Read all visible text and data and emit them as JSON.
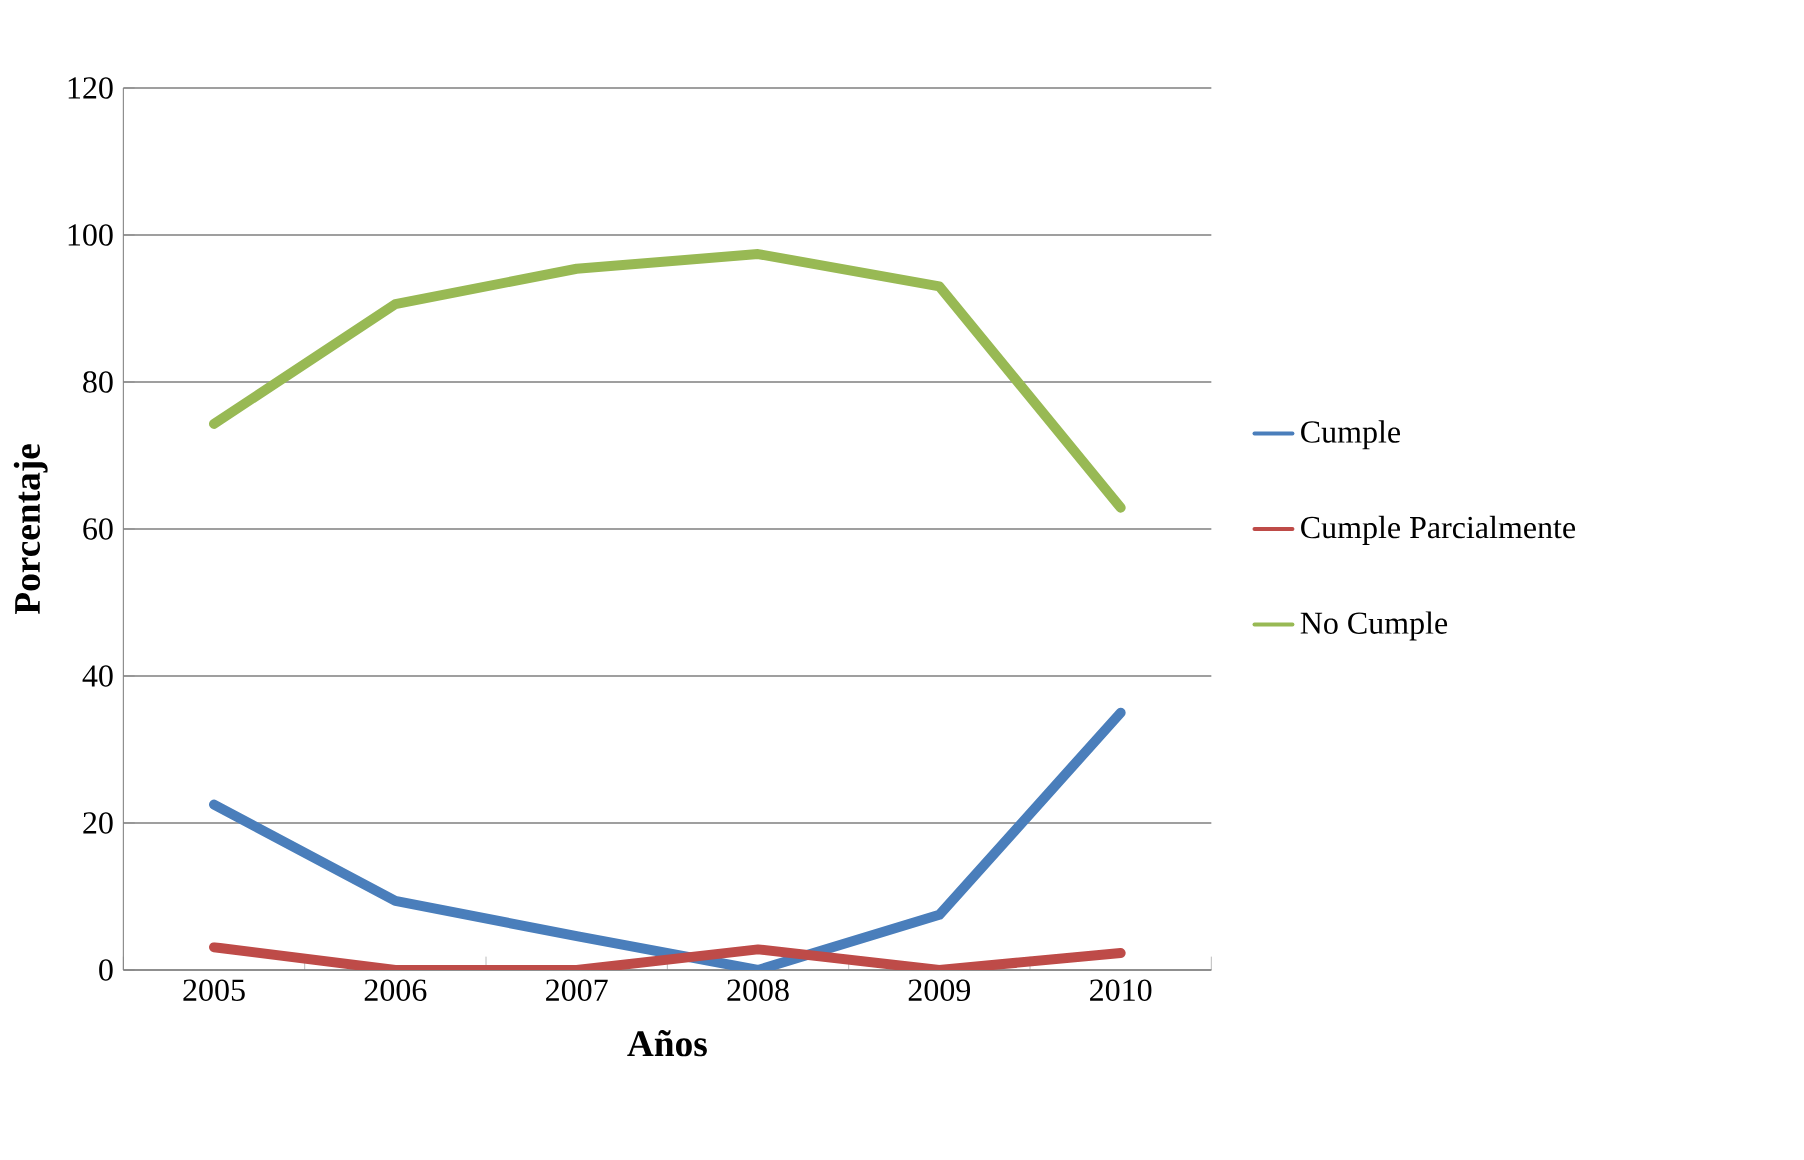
{
  "chart_data": {
    "type": "line",
    "xlabel": "Años",
    "ylabel": "Porcentaje",
    "categories": [
      "2005",
      "2006",
      "2007",
      "2008",
      "2009",
      "2010"
    ],
    "series": [
      {
        "name": "Cumple",
        "color": "#4a7ebb",
        "values": [
          22.5,
          9.4,
          4.6,
          0,
          7.5,
          35.0
        ]
      },
      {
        "name": "Cumple Parcialmente",
        "color": "#be4b48",
        "values": [
          3.1,
          0,
          0,
          2.8,
          0,
          2.3
        ]
      },
      {
        "name": "No Cumple",
        "color": "#98b954",
        "values": [
          74.3,
          90.6,
          95.4,
          97.4,
          93.0,
          62.9
        ]
      }
    ],
    "ylim": [
      0,
      120
    ],
    "yticks": [
      0,
      20,
      40,
      60,
      80,
      100,
      120
    ],
    "grid": "y",
    "legend": "right",
    "marker": "none",
    "line_style": "solid"
  }
}
